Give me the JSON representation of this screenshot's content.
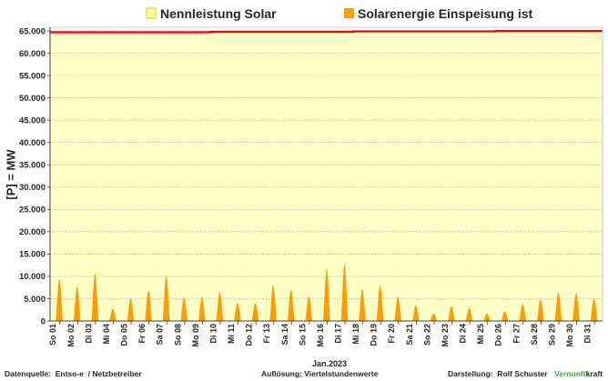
{
  "chart_data": {
    "type": "area",
    "xlabel": "Jan.2023",
    "ylabel": "[P] = MW",
    "categories": [
      "So 01",
      "Mo 02",
      "Di 03",
      "Mi 04",
      "Do 05",
      "Fr 06",
      "Sa 07",
      "So 08",
      "Mo 09",
      "Di 10",
      "Mi 11",
      "Do 12",
      "Fr 13",
      "Sa 14",
      "So 15",
      "Mo 16",
      "Di 17",
      "Mi 18",
      "Do 19",
      "Fr 20",
      "Sa 21",
      "So 22",
      "Mo 23",
      "Di 24",
      "Mi 25",
      "Do 26",
      "Fr 27",
      "Sa 28",
      "So 29",
      "Mo 30",
      "Di 31"
    ],
    "ylim": [
      0,
      65000
    ],
    "yticks": [
      0,
      5000,
      10000,
      15000,
      20000,
      25000,
      30000,
      35000,
      40000,
      45000,
      50000,
      55000,
      60000,
      65000
    ],
    "ytick_labels": [
      "0",
      "5.000",
      "10.000",
      "15.000",
      "20.000",
      "25.000",
      "30.000",
      "35.000",
      "40.000",
      "45.000",
      "50.000",
      "55.000",
      "60.000",
      "65.000"
    ],
    "grid": true,
    "legend_position": "top",
    "series": [
      {
        "name": "Nennleistung Solar",
        "values": [
          64700,
          64700,
          64700,
          64700,
          64700,
          64700,
          64700,
          64700,
          64700,
          64800,
          64800,
          64800,
          64800,
          64800,
          64800,
          64800,
          64800,
          64900,
          64900,
          64900,
          64900,
          64900,
          64900,
          64900,
          64900,
          65000,
          65000,
          65000,
          65000,
          65000,
          65000
        ]
      },
      {
        "name": "Solarenergie Einspeisung ist",
        "values": [
          9400,
          7700,
          10600,
          2700,
          5100,
          6800,
          10200,
          5300,
          5400,
          6500,
          4100,
          4000,
          8000,
          7000,
          5500,
          11600,
          12600,
          7100,
          8000,
          5400,
          3500,
          1700,
          3300,
          2900,
          1700,
          2200,
          3700,
          4900,
          6400,
          6200,
          5100
        ]
      }
    ]
  },
  "footer": {
    "source": "Datenquelle:  Entso-e  / Netzbetreiber",
    "resolution": "Auflösung: Viertelstundenwerte",
    "author": "Darstellung:  Rolf Schuster",
    "brand_green": "Vernunft",
    "brand_black": "kraft"
  },
  "colors": {
    "capacity_fill": "#FFFFC6",
    "capacity_line": "#FF0000",
    "legend_capacity_fill": "#FFFF9E",
    "legend_capacity_border": "#E8C400",
    "feed_in_fill": "#FF9C00",
    "grid": "#A6A6A6",
    "axis": "#404040",
    "frame": "#BFBFBF",
    "text": "#262626",
    "brand_green": "#35B035"
  }
}
